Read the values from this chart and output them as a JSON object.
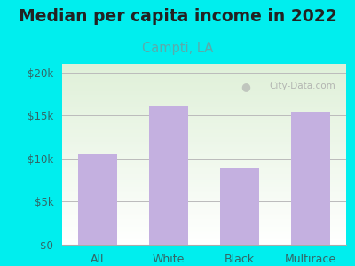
{
  "title": "Median per capita income in 2022",
  "subtitle": "Campti, LA",
  "categories": [
    "All",
    "White",
    "Black",
    "Multirace"
  ],
  "values": [
    10500,
    16200,
    8900,
    15400
  ],
  "bar_color": "#c4b0e0",
  "title_fontsize": 13.5,
  "subtitle_fontsize": 10.5,
  "subtitle_color": "#5aabab",
  "title_color": "#222222",
  "outer_bg": "#00eeee",
  "inner_bg_top": "#dff0d8",
  "inner_bg_bottom": "#ffffff",
  "tick_color": "#336666",
  "grid_color": "#bbbbbb",
  "xlabel_color": "#336666",
  "ylim": [
    0,
    21000
  ],
  "yticks": [
    0,
    5000,
    10000,
    15000,
    20000
  ],
  "ytick_labels": [
    "$0",
    "$5k",
    "$10k",
    "$15k",
    "$20k"
  ],
  "watermark_text": "City-Data.com",
  "watermark_color": "#aaaaaa"
}
